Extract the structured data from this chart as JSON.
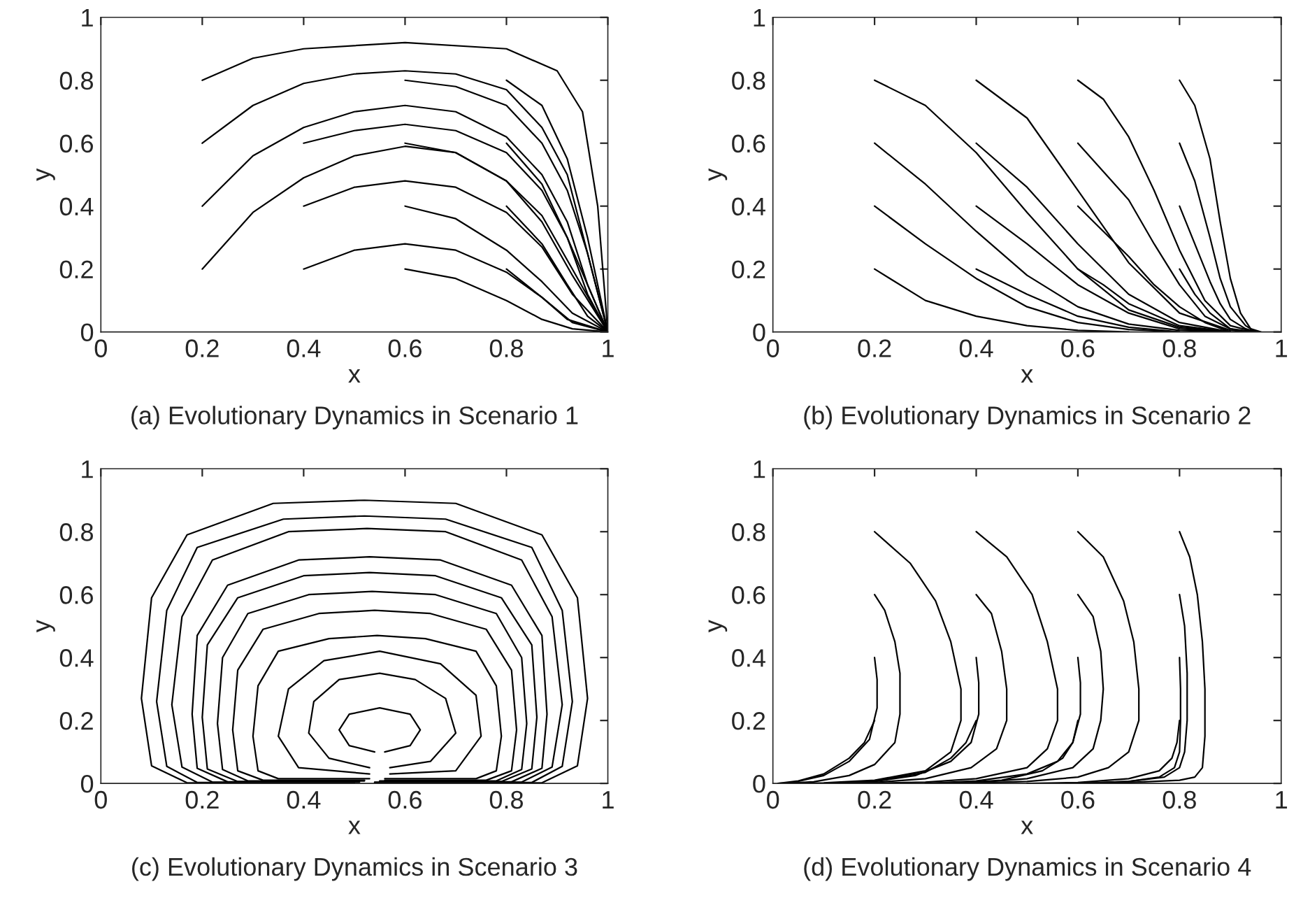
{
  "chart_data": [
    {
      "type": "line",
      "title": "(a) Evolutionary Dynamics in Scenario 1",
      "xlabel": "x",
      "ylabel": "y",
      "xlim": [
        0,
        1
      ],
      "ylim": [
        0,
        1
      ],
      "xticks": [
        0,
        0.2,
        0.4,
        0.6,
        0.8,
        1
      ],
      "yticks": [
        0,
        0.2,
        0.4,
        0.6,
        0.8,
        1
      ],
      "series": [
        {
          "color": "#000000",
          "x": [
            0.2,
            0.3,
            0.4,
            0.6,
            0.8,
            0.9,
            0.95,
            0.98,
            1.0
          ],
          "values": [
            0.8,
            0.87,
            0.9,
            0.92,
            0.9,
            0.83,
            0.7,
            0.4,
            0
          ]
        },
        {
          "color": "#000000",
          "x": [
            0.2,
            0.3,
            0.4,
            0.5,
            0.6,
            0.7,
            0.8,
            0.87,
            0.92,
            0.96,
            1.0
          ],
          "values": [
            0.6,
            0.72,
            0.79,
            0.82,
            0.83,
            0.82,
            0.77,
            0.65,
            0.5,
            0.25,
            0
          ]
        },
        {
          "color": "#000000",
          "x": [
            0.2,
            0.3,
            0.4,
            0.5,
            0.6,
            0.7,
            0.8,
            0.87,
            0.92,
            0.96,
            1.0
          ],
          "values": [
            0.4,
            0.56,
            0.65,
            0.7,
            0.72,
            0.7,
            0.62,
            0.5,
            0.35,
            0.15,
            0
          ]
        },
        {
          "color": "#000000",
          "x": [
            0.2,
            0.3,
            0.4,
            0.5,
            0.6,
            0.7,
            0.8,
            0.87,
            0.93,
            1.0
          ],
          "values": [
            0.2,
            0.38,
            0.49,
            0.56,
            0.59,
            0.57,
            0.48,
            0.35,
            0.18,
            0
          ]
        },
        {
          "color": "#000000",
          "x": [
            0.4,
            0.5,
            0.6,
            0.7,
            0.8,
            0.87,
            0.92,
            0.96,
            1.0
          ],
          "values": [
            0.6,
            0.64,
            0.66,
            0.64,
            0.57,
            0.45,
            0.3,
            0.15,
            0
          ]
        },
        {
          "color": "#000000",
          "x": [
            0.4,
            0.5,
            0.6,
            0.7,
            0.8,
            0.87,
            0.93,
            1.0
          ],
          "values": [
            0.4,
            0.46,
            0.48,
            0.46,
            0.38,
            0.27,
            0.12,
            0
          ]
        },
        {
          "color": "#000000",
          "x": [
            0.4,
            0.5,
            0.6,
            0.7,
            0.8,
            0.87,
            0.93,
            1.0
          ],
          "values": [
            0.2,
            0.26,
            0.28,
            0.26,
            0.19,
            0.11,
            0.03,
            0
          ]
        },
        {
          "color": "#000000",
          "x": [
            0.6,
            0.7,
            0.8,
            0.87,
            0.92,
            0.96,
            1.0
          ],
          "values": [
            0.8,
            0.78,
            0.72,
            0.6,
            0.45,
            0.25,
            0
          ]
        },
        {
          "color": "#000000",
          "x": [
            0.6,
            0.7,
            0.8,
            0.87,
            0.93,
            1.0
          ],
          "values": [
            0.6,
            0.57,
            0.48,
            0.37,
            0.2,
            0
          ]
        },
        {
          "color": "#000000",
          "x": [
            0.6,
            0.7,
            0.8,
            0.87,
            0.93,
            1.0
          ],
          "values": [
            0.4,
            0.36,
            0.26,
            0.16,
            0.06,
            0
          ]
        },
        {
          "color": "#000000",
          "x": [
            0.6,
            0.7,
            0.8,
            0.87,
            0.93,
            1.0
          ],
          "values": [
            0.2,
            0.17,
            0.1,
            0.04,
            0.01,
            0
          ]
        },
        {
          "color": "#000000",
          "x": [
            0.8,
            0.87,
            0.92,
            0.96,
            1.0
          ],
          "values": [
            0.8,
            0.72,
            0.55,
            0.3,
            0
          ]
        },
        {
          "color": "#000000",
          "x": [
            0.8,
            0.87,
            0.92,
            0.96,
            1.0
          ],
          "values": [
            0.6,
            0.47,
            0.3,
            0.12,
            0
          ]
        },
        {
          "color": "#000000",
          "x": [
            0.8,
            0.87,
            0.92,
            0.96,
            1.0
          ],
          "values": [
            0.4,
            0.28,
            0.15,
            0.05,
            0
          ]
        },
        {
          "color": "#000000",
          "x": [
            0.8,
            0.87,
            0.92,
            1.0
          ],
          "values": [
            0.2,
            0.11,
            0.04,
            0
          ]
        }
      ]
    },
    {
      "type": "line",
      "title": "(b) Evolutionary Dynamics in Scenario 2",
      "xlabel": "x",
      "ylabel": "y",
      "xlim": [
        0,
        1
      ],
      "ylim": [
        0,
        1
      ],
      "xticks": [
        0,
        0.2,
        0.4,
        0.6,
        0.8,
        1
      ],
      "yticks": [
        0,
        0.2,
        0.4,
        0.6,
        0.8,
        1
      ],
      "series": [
        {
          "color": "#000000",
          "x": [
            0.2,
            0.3,
            0.4,
            0.5,
            0.6,
            0.7,
            0.8,
            0.9
          ],
          "values": [
            0.8,
            0.72,
            0.57,
            0.38,
            0.2,
            0.07,
            0.015,
            0
          ]
        },
        {
          "color": "#000000",
          "x": [
            0.2,
            0.3,
            0.4,
            0.5,
            0.6,
            0.7,
            0.8,
            0.9
          ],
          "values": [
            0.6,
            0.47,
            0.32,
            0.18,
            0.08,
            0.025,
            0.005,
            0
          ]
        },
        {
          "color": "#000000",
          "x": [
            0.2,
            0.3,
            0.4,
            0.5,
            0.6,
            0.7,
            0.8
          ],
          "values": [
            0.4,
            0.28,
            0.17,
            0.08,
            0.03,
            0.008,
            0
          ]
        },
        {
          "color": "#000000",
          "x": [
            0.2,
            0.3,
            0.4,
            0.5,
            0.6,
            0.7
          ],
          "values": [
            0.2,
            0.1,
            0.05,
            0.02,
            0.005,
            0
          ]
        },
        {
          "color": "#000000",
          "x": [
            0.4,
            0.5,
            0.6,
            0.7,
            0.8,
            0.9,
            0.95
          ],
          "values": [
            0.8,
            0.68,
            0.45,
            0.22,
            0.06,
            0.005,
            0
          ]
        },
        {
          "color": "#000000",
          "x": [
            0.4,
            0.5,
            0.6,
            0.7,
            0.8,
            0.9
          ],
          "values": [
            0.6,
            0.46,
            0.28,
            0.12,
            0.03,
            0
          ]
        },
        {
          "color": "#000000",
          "x": [
            0.4,
            0.5,
            0.6,
            0.7,
            0.8,
            0.9
          ],
          "values": [
            0.4,
            0.28,
            0.15,
            0.06,
            0.01,
            0
          ]
        },
        {
          "color": "#000000",
          "x": [
            0.4,
            0.5,
            0.6,
            0.7,
            0.8
          ],
          "values": [
            0.2,
            0.12,
            0.05,
            0.015,
            0
          ]
        },
        {
          "color": "#000000",
          "x": [
            0.6,
            0.65,
            0.7,
            0.75,
            0.8,
            0.85,
            0.9,
            0.95
          ],
          "values": [
            0.8,
            0.74,
            0.62,
            0.45,
            0.26,
            0.1,
            0.02,
            0
          ]
        },
        {
          "color": "#000000",
          "x": [
            0.6,
            0.7,
            0.75,
            0.8,
            0.85,
            0.9,
            0.95
          ],
          "values": [
            0.6,
            0.42,
            0.28,
            0.15,
            0.05,
            0.01,
            0
          ]
        },
        {
          "color": "#000000",
          "x": [
            0.6,
            0.7,
            0.75,
            0.8,
            0.85,
            0.9
          ],
          "values": [
            0.4,
            0.24,
            0.15,
            0.08,
            0.03,
            0
          ]
        },
        {
          "color": "#000000",
          "x": [
            0.6,
            0.65,
            0.7,
            0.8,
            0.9
          ],
          "values": [
            0.2,
            0.15,
            0.09,
            0.02,
            0
          ]
        },
        {
          "color": "#000000",
          "x": [
            0.8,
            0.83,
            0.86,
            0.88,
            0.9,
            0.92,
            0.94,
            0.96
          ],
          "values": [
            0.8,
            0.72,
            0.55,
            0.35,
            0.17,
            0.06,
            0.01,
            0
          ]
        },
        {
          "color": "#000000",
          "x": [
            0.8,
            0.83,
            0.86,
            0.88,
            0.9,
            0.93,
            0.95
          ],
          "values": [
            0.6,
            0.48,
            0.3,
            0.17,
            0.08,
            0.02,
            0
          ]
        },
        {
          "color": "#000000",
          "x": [
            0.8,
            0.83,
            0.86,
            0.88,
            0.9,
            0.93,
            0.95
          ],
          "values": [
            0.4,
            0.28,
            0.16,
            0.09,
            0.04,
            0.01,
            0
          ]
        },
        {
          "color": "#000000",
          "x": [
            0.8,
            0.83,
            0.86,
            0.9,
            0.93
          ],
          "values": [
            0.2,
            0.12,
            0.06,
            0.01,
            0
          ]
        }
      ]
    },
    {
      "type": "line",
      "title": "(c) Evolutionary Dynamics in Scenario 3",
      "xlabel": "x",
      "ylabel": "y",
      "xlim": [
        0,
        1
      ],
      "ylim": [
        0,
        1
      ],
      "xticks": [
        0,
        0.2,
        0.4,
        0.6,
        0.8,
        1
      ],
      "yticks": [
        0,
        0.2,
        0.4,
        0.6,
        0.8,
        1
      ],
      "series": [
        {
          "color": "#000000",
          "x": [
            0.56,
            0.61,
            0.63,
            0.61,
            0.55,
            0.49,
            0.47,
            0.49,
            0.54
          ],
          "values": [
            0.1,
            0.12,
            0.17,
            0.22,
            0.24,
            0.22,
            0.17,
            0.12,
            0.1
          ]
        },
        {
          "color": "#000000",
          "x": [
            0.57,
            0.65,
            0.7,
            0.68,
            0.62,
            0.55,
            0.47,
            0.42,
            0.41,
            0.45,
            0.53
          ],
          "values": [
            0.05,
            0.07,
            0.16,
            0.27,
            0.33,
            0.35,
            0.33,
            0.26,
            0.16,
            0.08,
            0.05
          ]
        },
        {
          "color": "#000000",
          "x": [
            0.57,
            0.7,
            0.75,
            0.74,
            0.67,
            0.55,
            0.44,
            0.37,
            0.35,
            0.39,
            0.53
          ],
          "values": [
            0.03,
            0.04,
            0.15,
            0.28,
            0.38,
            0.42,
            0.39,
            0.3,
            0.15,
            0.05,
            0.03
          ]
        },
        {
          "color": "#000000",
          "x": [
            0.56,
            0.74,
            0.78,
            0.79,
            0.78,
            0.74,
            0.64,
            0.545,
            0.45,
            0.35,
            0.31,
            0.3,
            0.31,
            0.35,
            0.53
          ],
          "values": [
            0.015,
            0.015,
            0.04,
            0.15,
            0.31,
            0.42,
            0.46,
            0.47,
            0.46,
            0.42,
            0.31,
            0.15,
            0.04,
            0.015,
            0.015
          ]
        },
        {
          "color": "#000000",
          "x": [
            0.56,
            0.76,
            0.81,
            0.82,
            0.81,
            0.76,
            0.65,
            0.54,
            0.43,
            0.32,
            0.27,
            0.26,
            0.27,
            0.32,
            0.52
          ],
          "values": [
            0.01,
            0.01,
            0.04,
            0.17,
            0.36,
            0.49,
            0.54,
            0.55,
            0.54,
            0.49,
            0.36,
            0.17,
            0.04,
            0.01,
            0.01
          ]
        },
        {
          "color": "#000000",
          "x": [
            0.55,
            0.78,
            0.83,
            0.84,
            0.83,
            0.78,
            0.66,
            0.535,
            0.41,
            0.29,
            0.24,
            0.23,
            0.24,
            0.29,
            0.52
          ],
          "values": [
            0.008,
            0.008,
            0.044,
            0.19,
            0.4,
            0.54,
            0.6,
            0.61,
            0.6,
            0.54,
            0.4,
            0.19,
            0.044,
            0.008,
            0.008
          ]
        },
        {
          "color": "#000000",
          "x": [
            0.55,
            0.79,
            0.85,
            0.86,
            0.85,
            0.79,
            0.66,
            0.53,
            0.4,
            0.27,
            0.21,
            0.2,
            0.21,
            0.27,
            0.51
          ],
          "values": [
            0.006,
            0.006,
            0.046,
            0.21,
            0.44,
            0.59,
            0.66,
            0.67,
            0.66,
            0.59,
            0.44,
            0.21,
            0.046,
            0.006,
            0.006
          ]
        },
        {
          "color": "#000000",
          "x": [
            0.55,
            0.81,
            0.87,
            0.88,
            0.87,
            0.81,
            0.67,
            0.53,
            0.39,
            0.25,
            0.19,
            0.18,
            0.19,
            0.25,
            0.51
          ],
          "values": [
            0.005,
            0.005,
            0.048,
            0.22,
            0.47,
            0.63,
            0.71,
            0.72,
            0.71,
            0.63,
            0.47,
            0.22,
            0.048,
            0.005,
            0.005
          ]
        },
        {
          "color": "#000000",
          "x": [
            0.54,
            0.83,
            0.89,
            0.91,
            0.89,
            0.83,
            0.68,
            0.525,
            0.37,
            0.22,
            0.16,
            0.14,
            0.16,
            0.22,
            0.51
          ],
          "values": [
            0.004,
            0.004,
            0.052,
            0.25,
            0.53,
            0.71,
            0.8,
            0.81,
            0.8,
            0.71,
            0.53,
            0.25,
            0.052,
            0.004,
            0.004
          ]
        },
        {
          "color": "#000000",
          "x": [
            0.54,
            0.85,
            0.91,
            0.93,
            0.91,
            0.85,
            0.68,
            0.52,
            0.36,
            0.19,
            0.13,
            0.11,
            0.13,
            0.19,
            0.5
          ],
          "values": [
            0.003,
            0.003,
            0.054,
            0.26,
            0.55,
            0.75,
            0.84,
            0.85,
            0.84,
            0.75,
            0.55,
            0.26,
            0.054,
            0.003,
            0.003
          ]
        },
        {
          "color": "#000000",
          "x": [
            0.54,
            0.87,
            0.94,
            0.96,
            0.94,
            0.87,
            0.7,
            0.52,
            0.34,
            0.17,
            0.1,
            0.08,
            0.1,
            0.17,
            0.5
          ],
          "values": [
            0.002,
            0.002,
            0.056,
            0.27,
            0.59,
            0.79,
            0.89,
            0.9,
            0.89,
            0.79,
            0.59,
            0.27,
            0.056,
            0.002,
            0.002
          ]
        }
      ]
    },
    {
      "type": "line",
      "title": "(d) Evolutionary Dynamics in Scenario 4",
      "xlabel": "x",
      "ylabel": "y",
      "xlim": [
        0,
        1
      ],
      "ylim": [
        0,
        1
      ],
      "xticks": [
        0,
        0.2,
        0.4,
        0.6,
        0.8,
        1
      ],
      "yticks": [
        0,
        0.2,
        0.4,
        0.6,
        0.8,
        1
      ],
      "series": [
        {
          "color": "#000000",
          "x": [
            0.2,
            0.27,
            0.32,
            0.35,
            0.37,
            0.37,
            0.35,
            0.3,
            0.2,
            0.1,
            0.03
          ],
          "values": [
            0.8,
            0.7,
            0.58,
            0.45,
            0.3,
            0.2,
            0.1,
            0.04,
            0.01,
            0.002,
            0
          ]
        },
        {
          "color": "#000000",
          "x": [
            0.2,
            0.22,
            0.24,
            0.25,
            0.25,
            0.24,
            0.2,
            0.15,
            0.08,
            0.02
          ],
          "values": [
            0.6,
            0.55,
            0.45,
            0.35,
            0.22,
            0.13,
            0.06,
            0.025,
            0.005,
            0
          ]
        },
        {
          "color": "#000000",
          "x": [
            0.2,
            0.205,
            0.205,
            0.19,
            0.15,
            0.1,
            0.04,
            0.01
          ],
          "values": [
            0.4,
            0.33,
            0.24,
            0.14,
            0.07,
            0.025,
            0.003,
            0
          ]
        },
        {
          "color": "#000000",
          "x": [
            0.2,
            0.18,
            0.15,
            0.1,
            0.05,
            0.01
          ],
          "values": [
            0.2,
            0.13,
            0.08,
            0.03,
            0.008,
            0
          ]
        },
        {
          "color": "#000000",
          "x": [
            0.4,
            0.46,
            0.51,
            0.54,
            0.56,
            0.56,
            0.54,
            0.5,
            0.4,
            0.3,
            0.2,
            0.1
          ],
          "values": [
            0.8,
            0.72,
            0.6,
            0.45,
            0.3,
            0.2,
            0.11,
            0.05,
            0.015,
            0.004,
            0.001,
            0
          ]
        },
        {
          "color": "#000000",
          "x": [
            0.4,
            0.43,
            0.45,
            0.46,
            0.46,
            0.44,
            0.39,
            0.3,
            0.2,
            0.1
          ],
          "values": [
            0.6,
            0.54,
            0.42,
            0.3,
            0.2,
            0.11,
            0.05,
            0.015,
            0.003,
            0
          ]
        },
        {
          "color": "#000000",
          "x": [
            0.4,
            0.405,
            0.405,
            0.39,
            0.35,
            0.28,
            0.2,
            0.1
          ],
          "values": [
            0.4,
            0.32,
            0.22,
            0.13,
            0.07,
            0.025,
            0.006,
            0
          ]
        },
        {
          "color": "#000000",
          "x": [
            0.4,
            0.38,
            0.35,
            0.3,
            0.2,
            0.1
          ],
          "values": [
            0.2,
            0.13,
            0.08,
            0.035,
            0.008,
            0
          ]
        },
        {
          "color": "#000000",
          "x": [
            0.6,
            0.65,
            0.69,
            0.71,
            0.72,
            0.72,
            0.7,
            0.66,
            0.6,
            0.5,
            0.4,
            0.3
          ],
          "values": [
            0.8,
            0.72,
            0.58,
            0.45,
            0.3,
            0.2,
            0.1,
            0.05,
            0.02,
            0.006,
            0.001,
            0
          ]
        },
        {
          "color": "#000000",
          "x": [
            0.6,
            0.63,
            0.645,
            0.65,
            0.645,
            0.63,
            0.59,
            0.5,
            0.4,
            0.3
          ],
          "values": [
            0.6,
            0.53,
            0.42,
            0.3,
            0.2,
            0.11,
            0.05,
            0.015,
            0.003,
            0
          ]
        },
        {
          "color": "#000000",
          "x": [
            0.6,
            0.605,
            0.605,
            0.59,
            0.56,
            0.5,
            0.4,
            0.3
          ],
          "values": [
            0.4,
            0.32,
            0.22,
            0.13,
            0.07,
            0.03,
            0.008,
            0
          ]
        },
        {
          "color": "#000000",
          "x": [
            0.6,
            0.59,
            0.57,
            0.53,
            0.45,
            0.35
          ],
          "values": [
            0.2,
            0.13,
            0.08,
            0.04,
            0.01,
            0
          ]
        },
        {
          "color": "#000000",
          "x": [
            0.8,
            0.82,
            0.835,
            0.845,
            0.85,
            0.85,
            0.845,
            0.83,
            0.8,
            0.7,
            0.6
          ],
          "values": [
            0.8,
            0.72,
            0.6,
            0.45,
            0.3,
            0.15,
            0.05,
            0.02,
            0.01,
            0.003,
            0
          ]
        },
        {
          "color": "#000000",
          "x": [
            0.8,
            0.81,
            0.815,
            0.815,
            0.81,
            0.8,
            0.77,
            0.7,
            0.6
          ],
          "values": [
            0.6,
            0.5,
            0.35,
            0.2,
            0.1,
            0.05,
            0.02,
            0.006,
            0
          ]
        },
        {
          "color": "#000000",
          "x": [
            0.8,
            0.802,
            0.802,
            0.8,
            0.79,
            0.76,
            0.7,
            0.6
          ],
          "values": [
            0.4,
            0.3,
            0.2,
            0.1,
            0.05,
            0.02,
            0.006,
            0
          ]
        },
        {
          "color": "#000000",
          "x": [
            0.8,
            0.795,
            0.785,
            0.76,
            0.7,
            0.6,
            0.5
          ],
          "values": [
            0.2,
            0.13,
            0.08,
            0.04,
            0.015,
            0.003,
            0
          ]
        }
      ]
    }
  ]
}
